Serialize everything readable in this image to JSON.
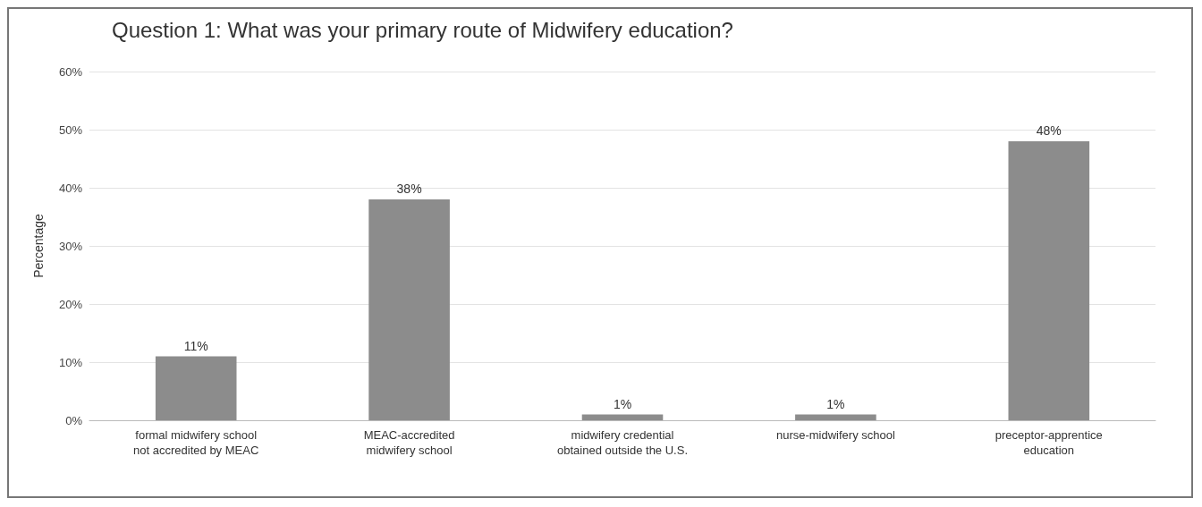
{
  "chart_data": {
    "type": "bar",
    "title": "Question 1: What was your primary route of Midwifery education?",
    "ylabel": "Percentage",
    "categories": [
      "formal midwifery school\nnot accredited by MEAC",
      "MEAC-accredited\nmidwifery school",
      "midwifery credential\nobtained outside the U.S.",
      "nurse-midwifery school",
      "preceptor-apprentice\neducation"
    ],
    "values": [
      11,
      38,
      1,
      1,
      48
    ],
    "value_labels": [
      "11%",
      "38%",
      "1%",
      "1%",
      "48%"
    ],
    "color": "#8c8c8c",
    "ylim": [
      0,
      60
    ],
    "yticks": [
      {
        "value": 0,
        "label": "0%"
      },
      {
        "value": 10,
        "label": "10%"
      },
      {
        "value": 20,
        "label": "20%"
      },
      {
        "value": 30,
        "label": "30%"
      },
      {
        "value": 40,
        "label": "40%"
      },
      {
        "value": 50,
        "label": "50%"
      },
      {
        "value": 60,
        "label": "60%"
      }
    ],
    "grid": "y"
  }
}
